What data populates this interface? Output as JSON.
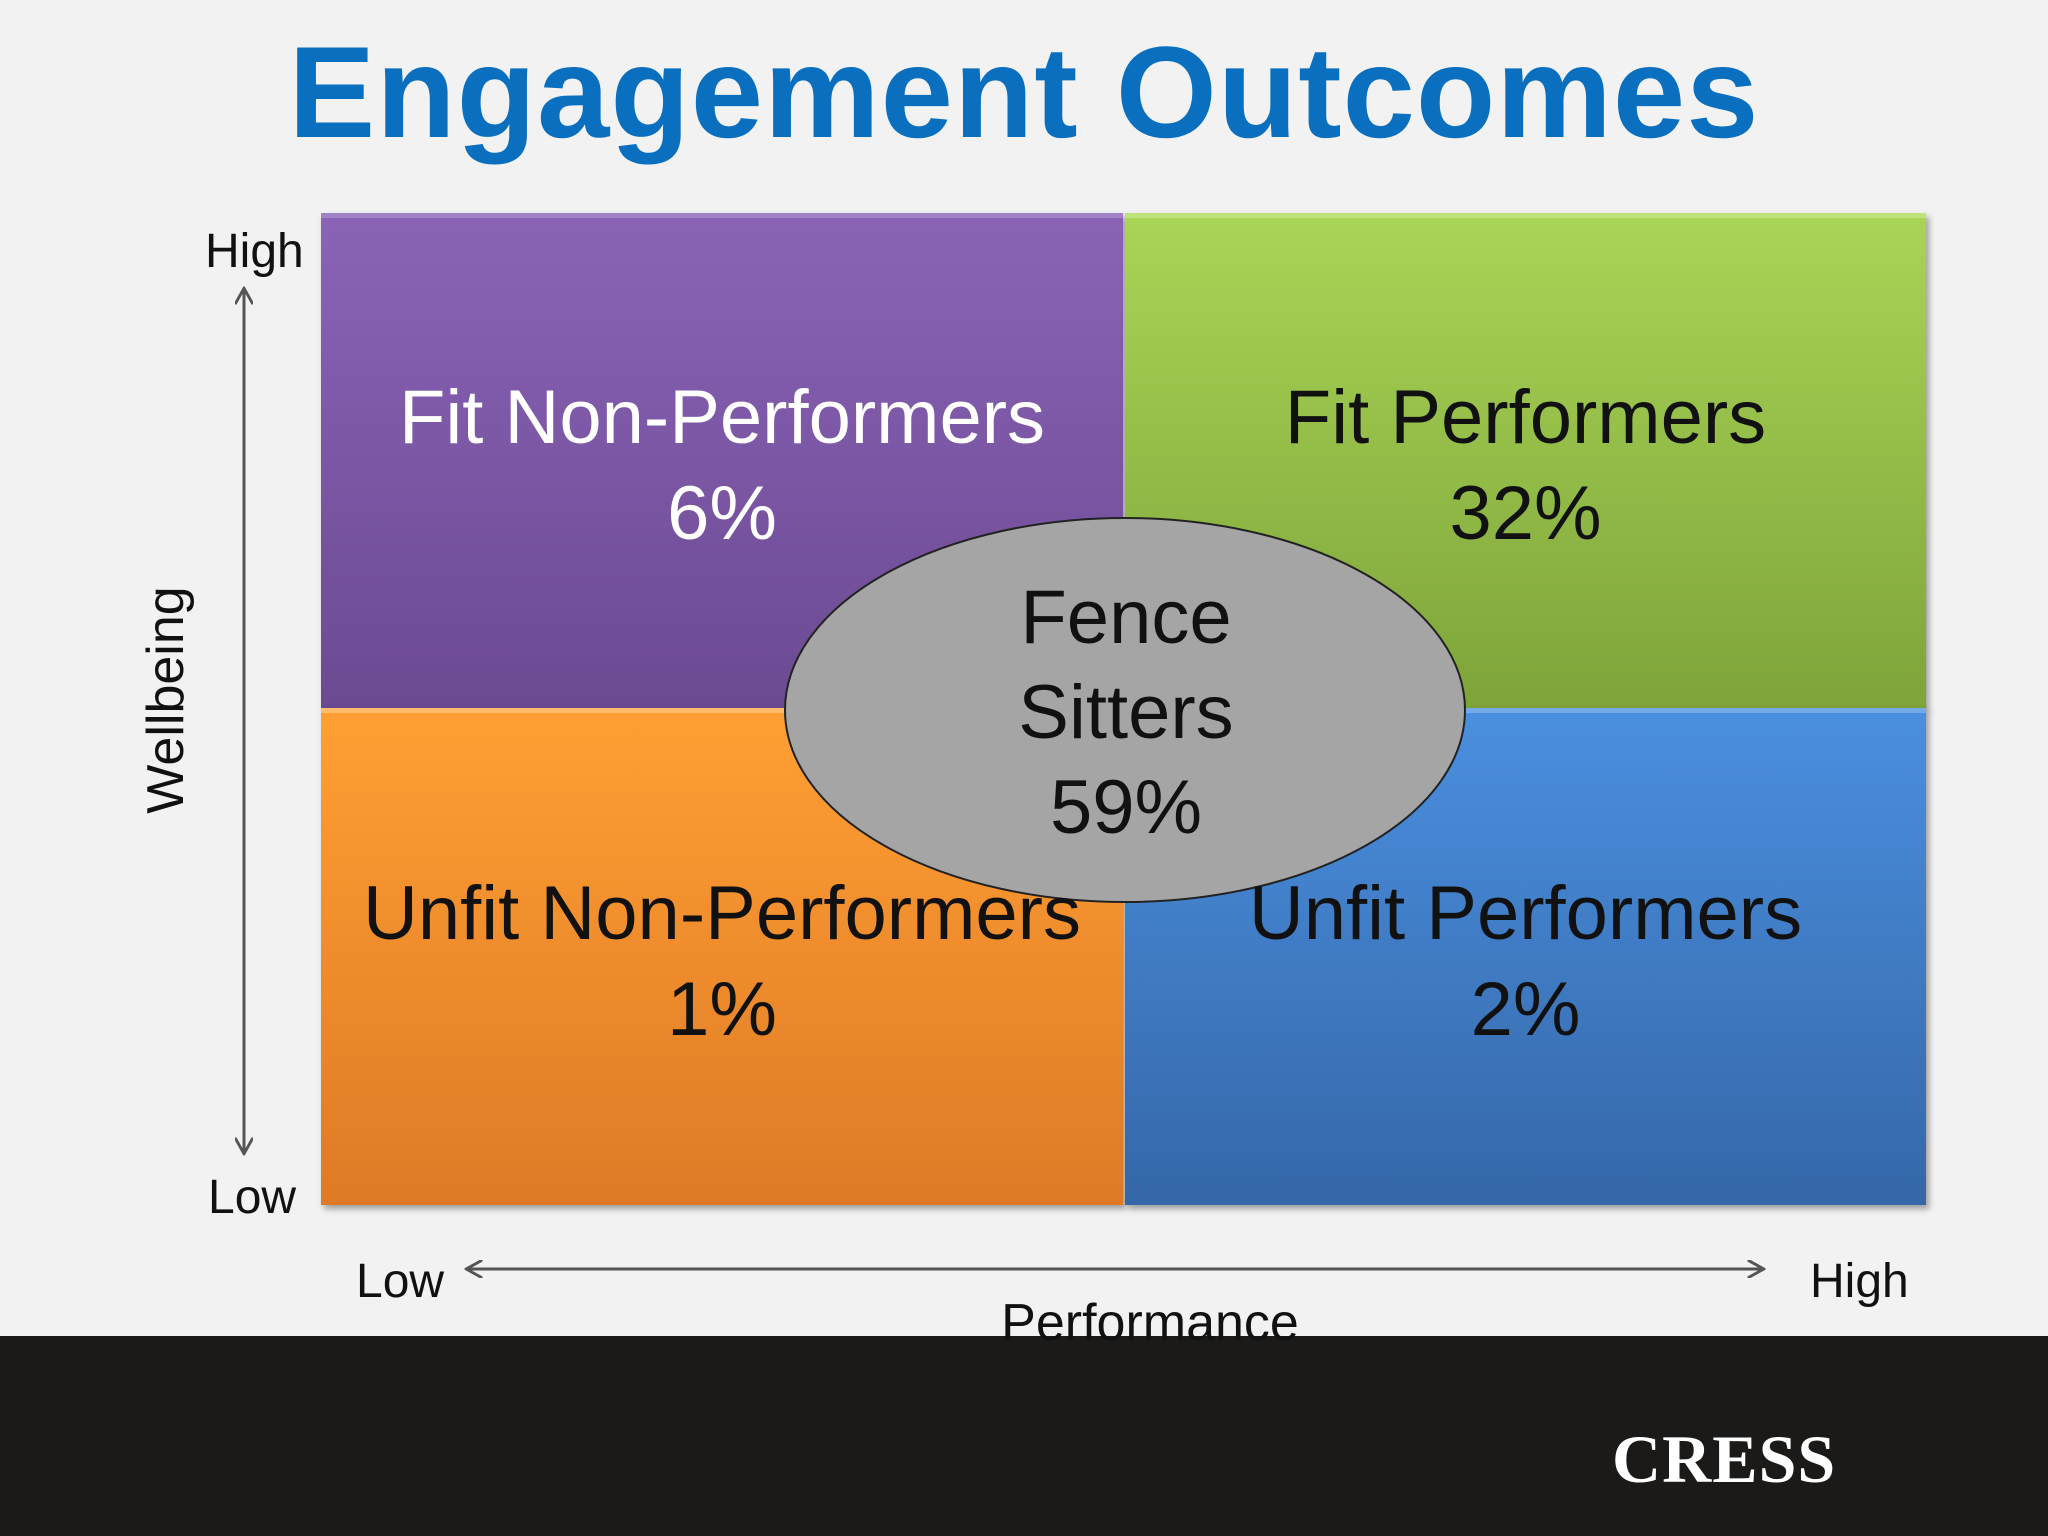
{
  "title": "Engagement Outcomes",
  "quadrants": {
    "top_left": {
      "label": "Fit Non-Performers",
      "value": "6%"
    },
    "top_right": {
      "label": "Fit Performers",
      "value": "32%"
    },
    "bottom_left": {
      "label": "Unfit Non-Performers",
      "value": "1%"
    },
    "bottom_right": {
      "label": "Unfit Performers",
      "value": "2%"
    }
  },
  "center": {
    "line1": "Fence",
    "line2": "Sitters",
    "value": "59%"
  },
  "y_axis": {
    "title": "Wellbeing",
    "high": "High",
    "low": "Low"
  },
  "x_axis": {
    "title": "Performance",
    "low": "Low",
    "high": "High"
  },
  "brand": "CRESS",
  "colors": {
    "title": "#0a6fbf",
    "top_left": "#7b56a6",
    "top_right": "#95c047",
    "bottom_left": "#fb8c2b",
    "bottom_right": "#3f7fcc",
    "center": "#a6a5a6",
    "footer": "#1b1a18",
    "logo": "#2f4a9b"
  }
}
